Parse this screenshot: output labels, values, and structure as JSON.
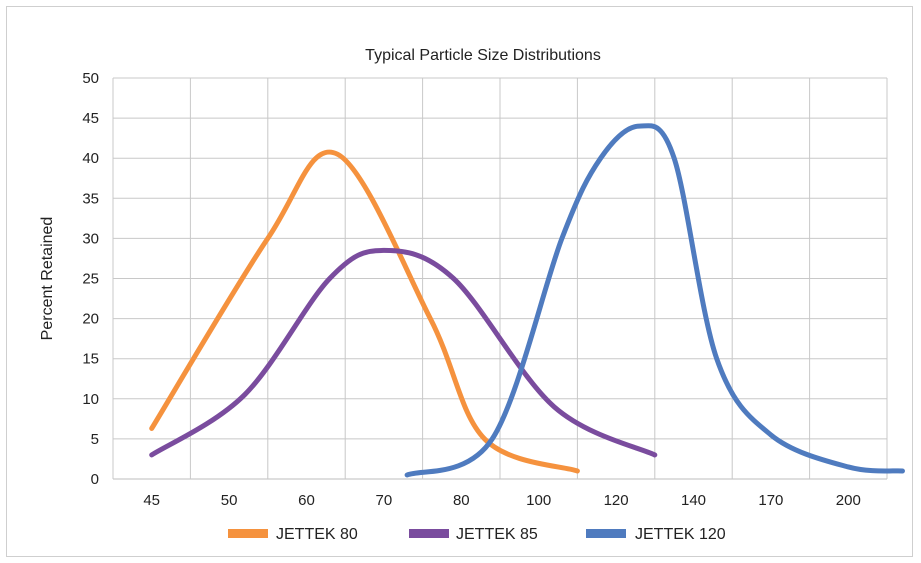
{
  "chart_data": {
    "type": "line",
    "title": "Typical Particle Size Distributions",
    "xlabel": "",
    "ylabel": "Percent Retained",
    "categories": [
      "45",
      "50",
      "60",
      "70",
      "80",
      "100",
      "120",
      "140",
      "170",
      "200"
    ],
    "ylim": [
      0,
      50
    ],
    "yticks": [
      "0",
      "5",
      "10",
      "15",
      "20",
      "25",
      "30",
      "35",
      "40",
      "45",
      "50"
    ],
    "grid": true,
    "legend": "bottom",
    "series": [
      {
        "name": "JETTEK 80",
        "color": "#f5923e",
        "points": [
          [
            0,
            6.3
          ],
          [
            1.5,
            30
          ],
          [
            2.4,
            40.5
          ],
          [
            3.6,
            20
          ],
          [
            4.3,
            5
          ],
          [
            5.5,
            1
          ]
        ]
      },
      {
        "name": "JETTEK 85",
        "color": "#7a4c9e",
        "points": [
          [
            0,
            3
          ],
          [
            1.2,
            10.5
          ],
          [
            2.3,
            25
          ],
          [
            3.0,
            28.5
          ],
          [
            3.9,
            25
          ],
          [
            5.2,
            9
          ],
          [
            6.5,
            3
          ]
        ]
      },
      {
        "name": "JETTEK 120",
        "color": "#4f7bbf",
        "points": [
          [
            3.3,
            0.5
          ],
          [
            4.4,
            5
          ],
          [
            5.3,
            30
          ],
          [
            5.8,
            40
          ],
          [
            6.3,
            44
          ],
          [
            6.75,
            40
          ],
          [
            7.3,
            15
          ],
          [
            8.0,
            5.5
          ],
          [
            9.0,
            1.5
          ],
          [
            9.7,
            1
          ]
        ]
      }
    ]
  }
}
